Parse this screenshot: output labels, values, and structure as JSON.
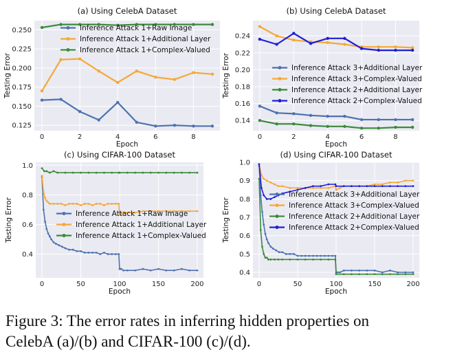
{
  "caption": {
    "line1": "Figure 3:  The error rates in inferring hidden properties on",
    "line2": "CelebA (a)/(b) and CIFAR-100 (c)/(d)."
  },
  "colors": {
    "blue": "#4C72B0",
    "orange": "#F5A835",
    "green": "#3A8A3A",
    "dblue": "#1F1FD6"
  },
  "chart_data": [
    {
      "id": "a",
      "type": "line",
      "title": "(a) Using CelebA Dataset",
      "xlabel": "Epoch",
      "ylabel": "Testing Error",
      "xlim": [
        -0.4,
        9.4
      ],
      "ylim": [
        0.118,
        0.262
      ],
      "xticks": [
        0,
        2,
        4,
        6,
        8
      ],
      "xtick_labels": [
        "0",
        "2",
        "4",
        "6",
        "8"
      ],
      "yticks": [
        0.125,
        0.15,
        0.175,
        0.2,
        0.225,
        0.25
      ],
      "ytick_labels": [
        "0.125",
        "0.150",
        "0.175",
        "0.200",
        "0.225",
        "0.250"
      ],
      "legend_position": "upper-right",
      "series": [
        {
          "name": "Inference Attack 1+Raw Image",
          "color": "#4C72B0",
          "marker": true,
          "x": [
            0,
            1,
            2,
            3,
            4,
            5,
            6,
            7,
            8,
            9
          ],
          "values": [
            0.158,
            0.159,
            0.143,
            0.132,
            0.155,
            0.129,
            0.124,
            0.125,
            0.124,
            0.124
          ]
        },
        {
          "name": "Inference Attack 1+Additional Layer",
          "color": "#F5A835",
          "marker": true,
          "x": [
            0,
            1,
            2,
            3,
            4,
            5,
            6,
            7,
            8,
            9
          ],
          "values": [
            0.17,
            0.211,
            0.212,
            0.196,
            0.181,
            0.196,
            0.188,
            0.185,
            0.194,
            0.192
          ]
        },
        {
          "name": "Inference Attack 1+Complex-Valued",
          "color": "#3A8A3A",
          "marker": true,
          "x": [
            0,
            1,
            2,
            3,
            4,
            5,
            6,
            7,
            8,
            9
          ],
          "values": [
            0.253,
            0.257,
            0.257,
            0.257,
            0.256,
            0.257,
            0.257,
            0.257,
            0.257,
            0.257
          ]
        }
      ]
    },
    {
      "id": "b",
      "type": "line",
      "title": "(b) Using CelebA Dataset",
      "xlabel": "Epoch",
      "ylabel": "Testing Error",
      "xlim": [
        -0.4,
        9.4
      ],
      "ylim": [
        0.128,
        0.258
      ],
      "xticks": [
        0,
        2,
        4,
        6,
        8
      ],
      "xtick_labels": [
        "0",
        "2",
        "4",
        "6",
        "8"
      ],
      "yticks": [
        0.14,
        0.16,
        0.18,
        0.2,
        0.22,
        0.24
      ],
      "ytick_labels": [
        "0.14",
        "0.16",
        "0.18",
        "0.20",
        "0.22",
        "0.24"
      ],
      "legend_position": "lower-right",
      "series": [
        {
          "name": "Inference Attack 3+Additional Layer",
          "color": "#4C72B0",
          "marker": true,
          "x": [
            0,
            1,
            2,
            3,
            4,
            5,
            6,
            7,
            8,
            9
          ],
          "values": [
            0.157,
            0.149,
            0.148,
            0.146,
            0.145,
            0.145,
            0.141,
            0.141,
            0.141,
            0.141
          ]
        },
        {
          "name": "Inference Attack 3+Complex-Valued",
          "color": "#F5A835",
          "marker": true,
          "x": [
            0,
            1,
            2,
            3,
            4,
            5,
            6,
            7,
            8,
            9
          ],
          "values": [
            0.251,
            0.24,
            0.235,
            0.233,
            0.232,
            0.23,
            0.227,
            0.227,
            0.227,
            0.226
          ]
        },
        {
          "name": "Inference Attack 2+Additional Layer",
          "color": "#3A8A3A",
          "marker": true,
          "x": [
            0,
            1,
            2,
            3,
            4,
            5,
            6,
            7,
            8,
            9
          ],
          "values": [
            0.14,
            0.136,
            0.136,
            0.134,
            0.133,
            0.133,
            0.131,
            0.131,
            0.132,
            0.132
          ]
        },
        {
          "name": "Inference Attack 2+Complex-Valued",
          "color": "#1F1FD6",
          "marker": true,
          "x": [
            0,
            1,
            2,
            3,
            4,
            5,
            6,
            7,
            8,
            9
          ],
          "values": [
            0.236,
            0.23,
            0.243,
            0.231,
            0.237,
            0.237,
            0.225,
            0.223,
            0.223,
            0.223
          ]
        }
      ]
    },
    {
      "id": "c",
      "type": "line",
      "title": "(c) Using CIFAR-100 Dataset",
      "xlabel": "Epoch",
      "ylabel": "Testing Error",
      "xlim": [
        -8,
        208
      ],
      "ylim": [
        0.24,
        1.02
      ],
      "xticks": [
        0,
        50,
        100,
        150,
        200
      ],
      "xtick_labels": [
        "0",
        "50",
        "100",
        "150",
        "200"
      ],
      "yticks": [
        0.4,
        0.6,
        0.8,
        1.0
      ],
      "ytick_labels": [
        "0.4",
        "0.6",
        "0.8",
        "1.0"
      ],
      "legend_position": "center-right",
      "series": [
        {
          "name": "Inference Attack 1+Raw Image",
          "color": "#4C72B0",
          "marker": true,
          "x": [
            0,
            2,
            4,
            6,
            8,
            10,
            12,
            15,
            18,
            22,
            26,
            30,
            35,
            40,
            45,
            50,
            55,
            60,
            65,
            70,
            75,
            80,
            85,
            90,
            95,
            99,
            100,
            102,
            105,
            110,
            120,
            130,
            140,
            150,
            160,
            170,
            180,
            190,
            200
          ],
          "values": [
            0.92,
            0.7,
            0.62,
            0.57,
            0.54,
            0.52,
            0.5,
            0.48,
            0.47,
            0.46,
            0.45,
            0.44,
            0.43,
            0.43,
            0.42,
            0.42,
            0.41,
            0.41,
            0.41,
            0.41,
            0.4,
            0.41,
            0.4,
            0.4,
            0.4,
            0.4,
            0.3,
            0.3,
            0.29,
            0.29,
            0.29,
            0.3,
            0.29,
            0.3,
            0.29,
            0.29,
            0.3,
            0.29,
            0.29
          ]
        },
        {
          "name": "Inference Attack 1+Additional Layer",
          "color": "#F5A835",
          "marker": true,
          "x": [
            0,
            2,
            4,
            6,
            8,
            10,
            15,
            20,
            25,
            30,
            35,
            40,
            45,
            50,
            55,
            60,
            65,
            70,
            75,
            80,
            85,
            90,
            95,
            99,
            100,
            102,
            105,
            110,
            120,
            130,
            140,
            150,
            160,
            170,
            180,
            190,
            200
          ],
          "values": [
            0.93,
            0.82,
            0.78,
            0.76,
            0.75,
            0.74,
            0.74,
            0.74,
            0.74,
            0.73,
            0.74,
            0.74,
            0.74,
            0.73,
            0.74,
            0.74,
            0.73,
            0.74,
            0.74,
            0.73,
            0.74,
            0.74,
            0.74,
            0.74,
            0.67,
            0.67,
            0.68,
            0.68,
            0.68,
            0.69,
            0.69,
            0.69,
            0.69,
            0.69,
            0.69,
            0.69,
            0.69
          ]
        },
        {
          "name": "Inference Attack 1+Complex-Valued",
          "color": "#3A8A3A",
          "marker": true,
          "x": [
            0,
            3,
            6,
            10,
            15,
            20,
            30,
            40,
            50,
            60,
            70,
            80,
            90,
            99,
            100,
            110,
            120,
            130,
            140,
            150,
            160,
            170,
            180,
            190,
            200
          ],
          "values": [
            0.98,
            0.96,
            0.96,
            0.95,
            0.96,
            0.95,
            0.95,
            0.95,
            0.95,
            0.95,
            0.95,
            0.95,
            0.95,
            0.95,
            0.95,
            0.95,
            0.95,
            0.95,
            0.95,
            0.95,
            0.95,
            0.95,
            0.95,
            0.95,
            0.95
          ]
        }
      ]
    },
    {
      "id": "d",
      "type": "line",
      "title": "(d) Using CIFAR-100 Dataset",
      "xlabel": "Epoch",
      "ylabel": "Testing Error",
      "xlim": [
        -8,
        208
      ],
      "ylim": [
        0.37,
        1.0
      ],
      "xticks": [
        0,
        50,
        100,
        150,
        200
      ],
      "xtick_labels": [
        "0",
        "50",
        "100",
        "150",
        "200"
      ],
      "yticks": [
        0.4,
        0.5,
        0.6,
        0.7,
        0.8,
        0.9,
        1.0
      ],
      "ytick_labels": [
        "0.4",
        "0.5",
        "0.6",
        "0.7",
        "0.8",
        "0.9",
        "1.0"
      ],
      "legend_position": "center-right",
      "series": [
        {
          "name": "Inference Attack 3+Additional Layer",
          "color": "#4C72B0",
          "marker": true,
          "x": [
            0,
            2,
            4,
            6,
            8,
            10,
            12,
            15,
            18,
            22,
            26,
            30,
            35,
            40,
            45,
            50,
            55,
            60,
            65,
            70,
            75,
            80,
            85,
            90,
            95,
            99,
            100,
            102,
            105,
            110,
            120,
            130,
            140,
            150,
            160,
            170,
            180,
            190,
            200
          ],
          "values": [
            0.98,
            0.82,
            0.73,
            0.66,
            0.61,
            0.58,
            0.56,
            0.54,
            0.53,
            0.52,
            0.51,
            0.51,
            0.5,
            0.5,
            0.5,
            0.49,
            0.49,
            0.49,
            0.49,
            0.49,
            0.49,
            0.49,
            0.49,
            0.49,
            0.49,
            0.49,
            0.4,
            0.4,
            0.4,
            0.41,
            0.41,
            0.41,
            0.41,
            0.41,
            0.4,
            0.41,
            0.4,
            0.4,
            0.4
          ]
        },
        {
          "name": "Inference Attack 3+Complex-Valued",
          "color": "#F5A835",
          "marker": true,
          "x": [
            0,
            3,
            6,
            10,
            15,
            20,
            25,
            30,
            40,
            50,
            60,
            70,
            80,
            90,
            99,
            100,
            105,
            110,
            120,
            130,
            140,
            150,
            160,
            170,
            180,
            190,
            200
          ],
          "values": [
            0.99,
            0.93,
            0.91,
            0.9,
            0.89,
            0.88,
            0.87,
            0.87,
            0.86,
            0.86,
            0.86,
            0.86,
            0.86,
            0.86,
            0.87,
            0.85,
            0.86,
            0.87,
            0.87,
            0.87,
            0.87,
            0.88,
            0.88,
            0.89,
            0.89,
            0.9,
            0.9
          ]
        },
        {
          "name": "Inference Attack 2+Additional Layer",
          "color": "#3A8A3A",
          "marker": true,
          "x": [
            0,
            2,
            4,
            6,
            8,
            10,
            12,
            15,
            20,
            25,
            30,
            40,
            50,
            60,
            70,
            80,
            90,
            99,
            100,
            110,
            120,
            130,
            140,
            150,
            160,
            170,
            180,
            190,
            200
          ],
          "values": [
            0.91,
            0.63,
            0.54,
            0.5,
            0.48,
            0.48,
            0.47,
            0.47,
            0.47,
            0.47,
            0.47,
            0.47,
            0.47,
            0.47,
            0.47,
            0.47,
            0.47,
            0.47,
            0.39,
            0.39,
            0.39,
            0.39,
            0.39,
            0.39,
            0.39,
            0.39,
            0.39,
            0.39,
            0.39
          ]
        },
        {
          "name": "Inference Attack 2+Complex-Valued",
          "color": "#1F1FD6",
          "marker": true,
          "x": [
            0,
            3,
            6,
            10,
            15,
            20,
            25,
            30,
            40,
            50,
            60,
            70,
            80,
            90,
            99,
            100,
            110,
            120,
            130,
            140,
            150,
            160,
            170,
            180,
            190,
            200
          ],
          "values": [
            0.99,
            0.86,
            0.82,
            0.8,
            0.8,
            0.81,
            0.82,
            0.83,
            0.84,
            0.85,
            0.86,
            0.87,
            0.87,
            0.88,
            0.88,
            0.87,
            0.87,
            0.87,
            0.87,
            0.87,
            0.87,
            0.87,
            0.87,
            0.87,
            0.87,
            0.87
          ]
        }
      ]
    }
  ]
}
